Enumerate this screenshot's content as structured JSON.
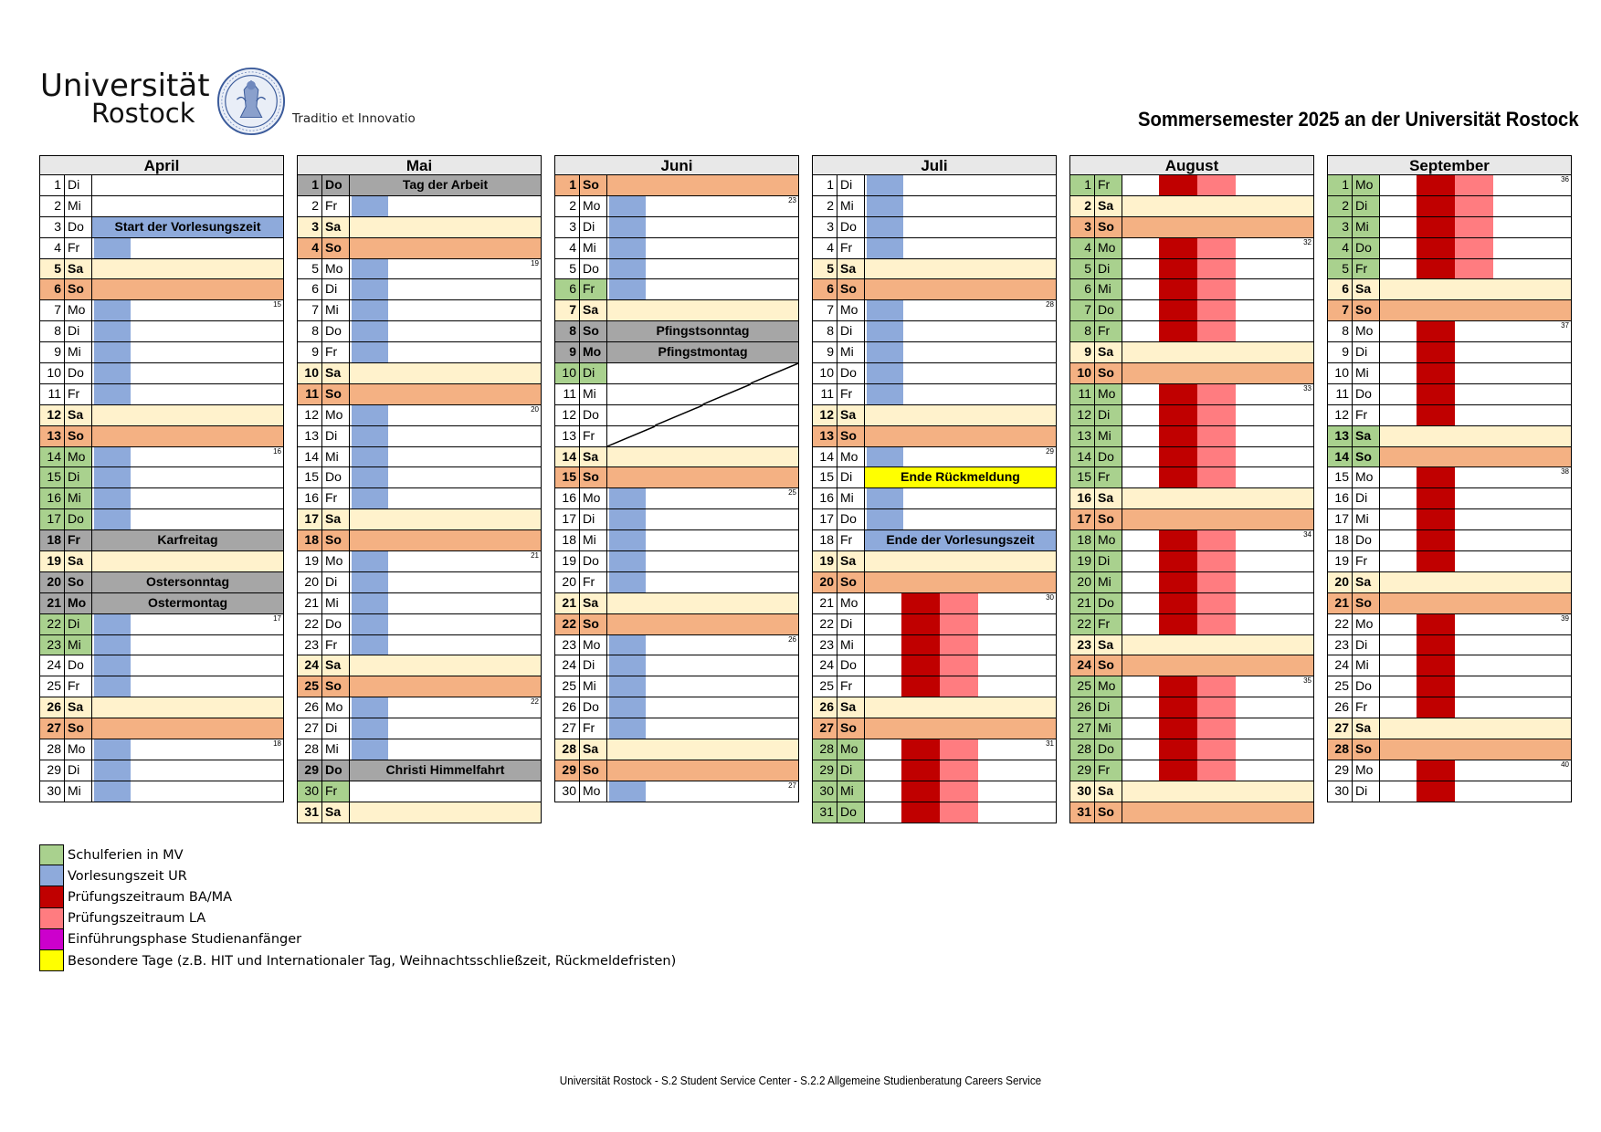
{
  "header": {
    "logo_line1": "Universität",
    "logo_line2": "Rostock",
    "motto": "Traditio et Innovatio",
    "title": "Sommersemester 2025 an der Universität Rostock"
  },
  "colors": {
    "vorlesung": "#8eaadb",
    "pruefung_ba_ma": "#c00000",
    "pruefung_la": "#ff7c80",
    "schulferien": "#a9d18e",
    "einfuehrung": "#cc00cc",
    "besondere": "#ffff00",
    "saturday": "#fff2cc",
    "sunday": "#f4b183",
    "holiday": "#a6a6a6"
  },
  "months": [
    {
      "name": "April",
      "days": [
        {
          "d": "1",
          "w": "Di"
        },
        {
          "d": "2",
          "w": "Mi"
        },
        {
          "d": "3",
          "w": "Do",
          "evt": "Start der Vorlesungszeit",
          "evtbg": "#8eaadb"
        },
        {
          "d": "4",
          "w": "Fr",
          "v": 1
        },
        {
          "d": "5",
          "w": "Sa"
        },
        {
          "d": "6",
          "w": "So"
        },
        {
          "d": "7",
          "w": "Mo",
          "v": 1,
          "wk": "15"
        },
        {
          "d": "8",
          "w": "Di",
          "v": 1
        },
        {
          "d": "9",
          "w": "Mi",
          "v": 1
        },
        {
          "d": "10",
          "w": "Do",
          "v": 1
        },
        {
          "d": "11",
          "w": "Fr",
          "v": 1
        },
        {
          "d": "12",
          "w": "Sa"
        },
        {
          "d": "13",
          "w": "So"
        },
        {
          "d": "14",
          "w": "Mo",
          "v": 1,
          "g": 1,
          "wk": "16"
        },
        {
          "d": "15",
          "w": "Di",
          "v": 1,
          "g": 1
        },
        {
          "d": "16",
          "w": "Mi",
          "v": 1,
          "g": 1
        },
        {
          "d": "17",
          "w": "Do",
          "v": 1,
          "g": 1
        },
        {
          "d": "18",
          "w": "Fr",
          "hol": "Karfreitag"
        },
        {
          "d": "19",
          "w": "Sa"
        },
        {
          "d": "20",
          "w": "So",
          "hol": "Ostersonntag"
        },
        {
          "d": "21",
          "w": "Mo",
          "hol": "Ostermontag"
        },
        {
          "d": "22",
          "w": "Di",
          "v": 1,
          "g": 1,
          "wk": "17"
        },
        {
          "d": "23",
          "w": "Mi",
          "v": 1,
          "g": 1
        },
        {
          "d": "24",
          "w": "Do",
          "v": 1
        },
        {
          "d": "25",
          "w": "Fr",
          "v": 1
        },
        {
          "d": "26",
          "w": "Sa"
        },
        {
          "d": "27",
          "w": "So"
        },
        {
          "d": "28",
          "w": "Mo",
          "v": 1,
          "wk": "18"
        },
        {
          "d": "29",
          "w": "Di",
          "v": 1
        },
        {
          "d": "30",
          "w": "Mi",
          "v": 1
        }
      ]
    },
    {
      "name": "Mai",
      "days": [
        {
          "d": "1",
          "w": "Do",
          "hol": "Tag der Arbeit"
        },
        {
          "d": "2",
          "w": "Fr",
          "v": 1
        },
        {
          "d": "3",
          "w": "Sa"
        },
        {
          "d": "4",
          "w": "So"
        },
        {
          "d": "5",
          "w": "Mo",
          "v": 1,
          "wk": "19"
        },
        {
          "d": "6",
          "w": "Di",
          "v": 1
        },
        {
          "d": "7",
          "w": "Mi",
          "v": 1
        },
        {
          "d": "8",
          "w": "Do",
          "v": 1
        },
        {
          "d": "9",
          "w": "Fr",
          "v": 1
        },
        {
          "d": "10",
          "w": "Sa"
        },
        {
          "d": "11",
          "w": "So"
        },
        {
          "d": "12",
          "w": "Mo",
          "v": 1,
          "wk": "20"
        },
        {
          "d": "13",
          "w": "Di",
          "v": 1
        },
        {
          "d": "14",
          "w": "Mi",
          "v": 1
        },
        {
          "d": "15",
          "w": "Do",
          "v": 1
        },
        {
          "d": "16",
          "w": "Fr",
          "v": 1
        },
        {
          "d": "17",
          "w": "Sa"
        },
        {
          "d": "18",
          "w": "So"
        },
        {
          "d": "19",
          "w": "Mo",
          "v": 1,
          "wk": "21"
        },
        {
          "d": "20",
          "w": "Di",
          "v": 1
        },
        {
          "d": "21",
          "w": "Mi",
          "v": 1
        },
        {
          "d": "22",
          "w": "Do",
          "v": 1
        },
        {
          "d": "23",
          "w": "Fr",
          "v": 1
        },
        {
          "d": "24",
          "w": "Sa"
        },
        {
          "d": "25",
          "w": "So"
        },
        {
          "d": "26",
          "w": "Mo",
          "v": 1,
          "wk": "22"
        },
        {
          "d": "27",
          "w": "Di",
          "v": 1
        },
        {
          "d": "28",
          "w": "Mi",
          "v": 1
        },
        {
          "d": "29",
          "w": "Do",
          "hol": "Christi Himmelfahrt"
        },
        {
          "d": "30",
          "w": "Fr",
          "g": 1
        },
        {
          "d": "31",
          "w": "Sa"
        }
      ]
    },
    {
      "name": "Juni",
      "days": [
        {
          "d": "1",
          "w": "So"
        },
        {
          "d": "2",
          "w": "Mo",
          "v": 1,
          "wk": "23"
        },
        {
          "d": "3",
          "w": "Di",
          "v": 1
        },
        {
          "d": "4",
          "w": "Mi",
          "v": 1
        },
        {
          "d": "5",
          "w": "Do",
          "v": 1
        },
        {
          "d": "6",
          "w": "Fr",
          "v": 1,
          "g": 1
        },
        {
          "d": "7",
          "w": "Sa"
        },
        {
          "d": "8",
          "w": "So",
          "hol": "Pfingstsonntag"
        },
        {
          "d": "9",
          "w": "Mo",
          "hol": "Pfingstmontag"
        },
        {
          "d": "10",
          "w": "Di",
          "g": 1,
          "x": "top"
        },
        {
          "d": "11",
          "w": "Mi",
          "x": "mid"
        },
        {
          "d": "12",
          "w": "Do",
          "x": "mid"
        },
        {
          "d": "13",
          "w": "Fr",
          "x": "bot"
        },
        {
          "d": "14",
          "w": "Sa"
        },
        {
          "d": "15",
          "w": "So"
        },
        {
          "d": "16",
          "w": "Mo",
          "v": 1,
          "wk": "25"
        },
        {
          "d": "17",
          "w": "Di",
          "v": 1
        },
        {
          "d": "18",
          "w": "Mi",
          "v": 1
        },
        {
          "d": "19",
          "w": "Do",
          "v": 1
        },
        {
          "d": "20",
          "w": "Fr",
          "v": 1
        },
        {
          "d": "21",
          "w": "Sa"
        },
        {
          "d": "22",
          "w": "So"
        },
        {
          "d": "23",
          "w": "Mo",
          "v": 1,
          "wk": "26"
        },
        {
          "d": "24",
          "w": "Di",
          "v": 1
        },
        {
          "d": "25",
          "w": "Mi",
          "v": 1
        },
        {
          "d": "26",
          "w": "Do",
          "v": 1
        },
        {
          "d": "27",
          "w": "Fr",
          "v": 1
        },
        {
          "d": "28",
          "w": "Sa"
        },
        {
          "d": "29",
          "w": "So"
        },
        {
          "d": "30",
          "w": "Mo",
          "v": 1,
          "wk": "27"
        }
      ]
    },
    {
      "name": "Juli",
      "days": [
        {
          "d": "1",
          "w": "Di",
          "v": 1
        },
        {
          "d": "2",
          "w": "Mi",
          "v": 1
        },
        {
          "d": "3",
          "w": "Do",
          "v": 1
        },
        {
          "d": "4",
          "w": "Fr",
          "v": 1
        },
        {
          "d": "5",
          "w": "Sa"
        },
        {
          "d": "6",
          "w": "So"
        },
        {
          "d": "7",
          "w": "Mo",
          "v": 1,
          "wk": "28"
        },
        {
          "d": "8",
          "w": "Di",
          "v": 1
        },
        {
          "d": "9",
          "w": "Mi",
          "v": 1
        },
        {
          "d": "10",
          "w": "Do",
          "v": 1
        },
        {
          "d": "11",
          "w": "Fr",
          "v": 1
        },
        {
          "d": "12",
          "w": "Sa"
        },
        {
          "d": "13",
          "w": "So"
        },
        {
          "d": "14",
          "w": "Mo",
          "v": 1,
          "wk": "29"
        },
        {
          "d": "15",
          "w": "Di",
          "evt": "Ende Rückmeldung",
          "evtbg": "#ffff00"
        },
        {
          "d": "16",
          "w": "Mi",
          "v": 1
        },
        {
          "d": "17",
          "w": "Do",
          "v": 1
        },
        {
          "d": "18",
          "w": "Fr",
          "evt": "Ende der Vorlesungszeit",
          "evtbg": "#8eaadb"
        },
        {
          "d": "19",
          "w": "Sa"
        },
        {
          "d": "20",
          "w": "So"
        },
        {
          "d": "21",
          "w": "Mo",
          "p": 1,
          "wk": "30"
        },
        {
          "d": "22",
          "w": "Di",
          "p": 1
        },
        {
          "d": "23",
          "w": "Mi",
          "p": 1
        },
        {
          "d": "24",
          "w": "Do",
          "p": 1
        },
        {
          "d": "25",
          "w": "Fr",
          "p": 1
        },
        {
          "d": "26",
          "w": "Sa"
        },
        {
          "d": "27",
          "w": "So"
        },
        {
          "d": "28",
          "w": "Mo",
          "p": 1,
          "g": 1,
          "wk": "31"
        },
        {
          "d": "29",
          "w": "Di",
          "p": 1,
          "g": 1
        },
        {
          "d": "30",
          "w": "Mi",
          "p": 1,
          "g": 1
        },
        {
          "d": "31",
          "w": "Do",
          "p": 1,
          "g": 1
        }
      ]
    },
    {
      "name": "August",
      "days": [
        {
          "d": "1",
          "w": "Fr",
          "p": 1,
          "g": 1
        },
        {
          "d": "2",
          "w": "Sa"
        },
        {
          "d": "3",
          "w": "So"
        },
        {
          "d": "4",
          "w": "Mo",
          "p": 1,
          "g": 1,
          "wk": "32"
        },
        {
          "d": "5",
          "w": "Di",
          "p": 1,
          "g": 1
        },
        {
          "d": "6",
          "w": "Mi",
          "p": 1,
          "g": 1
        },
        {
          "d": "7",
          "w": "Do",
          "p": 1,
          "g": 1
        },
        {
          "d": "8",
          "w": "Fr",
          "p": 1,
          "g": 1
        },
        {
          "d": "9",
          "w": "Sa"
        },
        {
          "d": "10",
          "w": "So"
        },
        {
          "d": "11",
          "w": "Mo",
          "p": 1,
          "g": 1,
          "wk": "33"
        },
        {
          "d": "12",
          "w": "Di",
          "p": 1,
          "g": 1
        },
        {
          "d": "13",
          "w": "Mi",
          "p": 1,
          "g": 1
        },
        {
          "d": "14",
          "w": "Do",
          "p": 1,
          "g": 1
        },
        {
          "d": "15",
          "w": "Fr",
          "p": 1,
          "g": 1
        },
        {
          "d": "16",
          "w": "Sa"
        },
        {
          "d": "17",
          "w": "So"
        },
        {
          "d": "18",
          "w": "Mo",
          "p": 1,
          "g": 1,
          "wk": "34"
        },
        {
          "d": "19",
          "w": "Di",
          "p": 1,
          "g": 1
        },
        {
          "d": "20",
          "w": "Mi",
          "p": 1,
          "g": 1
        },
        {
          "d": "21",
          "w": "Do",
          "p": 1,
          "g": 1
        },
        {
          "d": "22",
          "w": "Fr",
          "p": 1,
          "g": 1
        },
        {
          "d": "23",
          "w": "Sa"
        },
        {
          "d": "24",
          "w": "So"
        },
        {
          "d": "25",
          "w": "Mo",
          "p": 1,
          "g": 1,
          "wk": "35"
        },
        {
          "d": "26",
          "w": "Di",
          "p": 1,
          "g": 1
        },
        {
          "d": "27",
          "w": "Mi",
          "p": 1,
          "g": 1
        },
        {
          "d": "28",
          "w": "Do",
          "p": 1,
          "g": 1
        },
        {
          "d": "29",
          "w": "Fr",
          "p": 1,
          "g": 1
        },
        {
          "d": "30",
          "w": "Sa"
        },
        {
          "d": "31",
          "w": "So"
        }
      ]
    },
    {
      "name": "September",
      "days": [
        {
          "d": "1",
          "w": "Mo",
          "p": 1,
          "g": 1,
          "wk": "36"
        },
        {
          "d": "2",
          "w": "Di",
          "p": 1,
          "g": 1
        },
        {
          "d": "3",
          "w": "Mi",
          "p": 1,
          "g": 1
        },
        {
          "d": "4",
          "w": "Do",
          "p": 1,
          "g": 1
        },
        {
          "d": "5",
          "w": "Fr",
          "p": 1,
          "g": 1
        },
        {
          "d": "6",
          "w": "Sa"
        },
        {
          "d": "7",
          "w": "So"
        },
        {
          "d": "8",
          "w": "Mo",
          "pb": 1,
          "wk": "37"
        },
        {
          "d": "9",
          "w": "Di",
          "pb": 1
        },
        {
          "d": "10",
          "w": "Mi",
          "pb": 1
        },
        {
          "d": "11",
          "w": "Do",
          "pb": 1
        },
        {
          "d": "12",
          "w": "Fr",
          "pb": 1
        },
        {
          "d": "13",
          "w": "Sa",
          "g": 1
        },
        {
          "d": "14",
          "w": "So",
          "g": 1
        },
        {
          "d": "15",
          "w": "Mo",
          "pb": 1,
          "wk": "38"
        },
        {
          "d": "16",
          "w": "Di",
          "pb": 1
        },
        {
          "d": "17",
          "w": "Mi",
          "pb": 1
        },
        {
          "d": "18",
          "w": "Do",
          "pb": 1
        },
        {
          "d": "19",
          "w": "Fr",
          "pb": 1
        },
        {
          "d": "20",
          "w": "Sa"
        },
        {
          "d": "21",
          "w": "So"
        },
        {
          "d": "22",
          "w": "Mo",
          "pb": 1,
          "wk": "39"
        },
        {
          "d": "23",
          "w": "Di",
          "pb": 1
        },
        {
          "d": "24",
          "w": "Mi",
          "pb": 1
        },
        {
          "d": "25",
          "w": "Do",
          "pb": 1
        },
        {
          "d": "26",
          "w": "Fr",
          "pb": 1
        },
        {
          "d": "27",
          "w": "Sa"
        },
        {
          "d": "28",
          "w": "So"
        },
        {
          "d": "29",
          "w": "Mo",
          "pb": 1,
          "wk": "40"
        },
        {
          "d": "30",
          "w": "Di",
          "pb": 1
        }
      ]
    }
  ],
  "legend": [
    {
      "label": "Schulferien in MV",
      "color": "#a9d18e"
    },
    {
      "label": "Vorlesungszeit UR",
      "color": "#8eaadb"
    },
    {
      "label": "Prüfungszeitraum  BA/MA",
      "color": "#c00000"
    },
    {
      "label": "Prüfungszeitraum LA",
      "color": "#ff7c80"
    },
    {
      "label": "Einführungsphase Studienanfänger",
      "color": "#cc00cc"
    },
    {
      "label": "Besondere Tage (z.B. HIT und Internationaler Tag, Weihnachtsschließzeit, Rückmeldefristen)",
      "color": "#ffff00"
    }
  ],
  "footer": "Universität Rostock - S.2 Student Service Center - S.2.2 Allgemeine Studienberatung Careers Service"
}
